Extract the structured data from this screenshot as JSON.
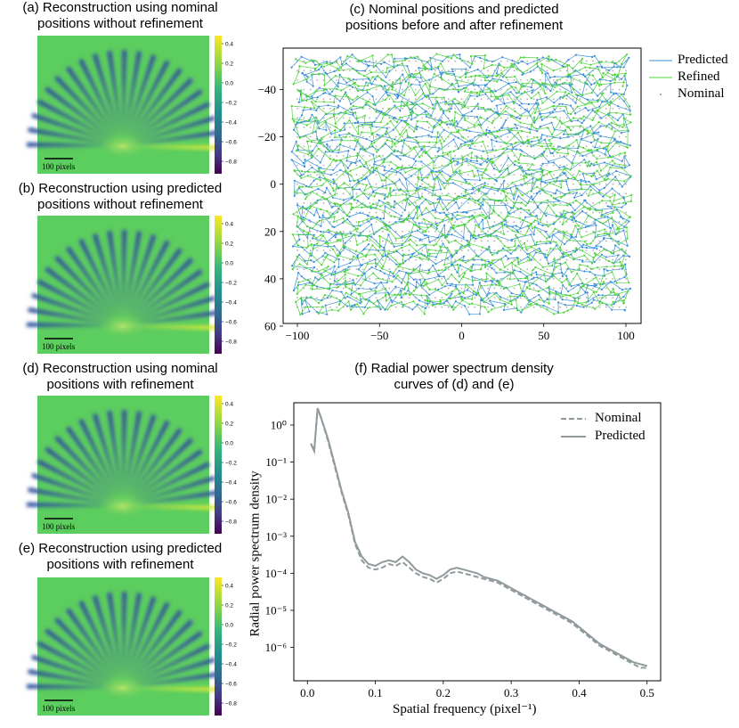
{
  "panels": {
    "a": {
      "title_l1": "(a) Reconstruction using nominal",
      "title_l2": "positions without refinement",
      "scalebar": "100 pixels"
    },
    "b": {
      "title_l1": "(b) Reconstruction using predicted",
      "title_l2": "positions without refinement",
      "scalebar": "100 pixels"
    },
    "d": {
      "title_l1": "(d) Reconstruction using nominal",
      "title_l2": "positions with refinement",
      "scalebar": "100 pixels"
    },
    "e": {
      "title_l1": "(e) Reconstruction using predicted",
      "title_l2": "positions with refinement",
      "scalebar": "100 pixels"
    },
    "c": {
      "title_l1": "(c) Nominal positions and predicted",
      "title_l2": "positions before and after refinement"
    },
    "f": {
      "title_l1": "(f) Radial power spectrum density",
      "title_l2": "curves of (d) and (e)"
    }
  },
  "colorbar_ticks": [
    "0.4",
    "0.2",
    "0.0",
    "−0.2",
    "−0.4",
    "−0.6",
    "−0.8"
  ],
  "colors": {
    "predicted": "#3a8fd9",
    "refined": "#4cd43a",
    "nominal": "#b0b0b0",
    "psd": "#909a9d"
  },
  "chart_data": [
    {
      "type": "scatter",
      "title": "(c) Nominal positions and predicted positions before and after refinement",
      "xlabel": "",
      "ylabel": "",
      "xlim": [
        -105,
        105
      ],
      "ylim": [
        60,
        -53
      ],
      "xticks": [
        "−100",
        "−50",
        "0",
        "50",
        "100"
      ],
      "xtick_values": [
        -100,
        -50,
        0,
        50,
        100
      ],
      "yticks": [
        "−40",
        "−20",
        "0",
        "20",
        "40",
        "60"
      ],
      "ytick_values": [
        -40,
        -20,
        0,
        20,
        40,
        60
      ],
      "nominal_grid": {
        "x_from": -100,
        "x_to": 100,
        "x_step": 4,
        "y_from": -52,
        "y_to": 52,
        "y_step": 4
      },
      "legend": [
        "Predicted",
        "Refined",
        "Nominal"
      ],
      "legend_position": "outside-top-right",
      "series": [
        {
          "name": "Predicted",
          "style": "line+points",
          "note": "perturbed serpentine scan path around nominal grid"
        },
        {
          "name": "Refined",
          "style": "line+points",
          "note": "refined scan path, close to predicted"
        },
        {
          "name": "Nominal",
          "style": "points"
        }
      ]
    },
    {
      "type": "line",
      "title": "(f) Radial power spectrum density curves of (d) and (e)",
      "xlabel": "Spatial frequency (pixel⁻¹)",
      "ylabel": "Radial power spectrum density",
      "yscale": "log",
      "xlim": [
        -0.02,
        0.52
      ],
      "ylim": [
        -6.9,
        0.6
      ],
      "xticks": [
        "0.0",
        "0.1",
        "0.2",
        "0.3",
        "0.4",
        "0.5"
      ],
      "xtick_values": [
        0,
        0.1,
        0.2,
        0.3,
        0.4,
        0.5
      ],
      "yticks": [
        "10⁰",
        "10⁻¹",
        "10⁻²",
        "10⁻³",
        "10⁻⁴",
        "10⁻⁵",
        "10⁻⁶"
      ],
      "ytick_values": [
        0,
        -1,
        -2,
        -3,
        -4,
        -5,
        -6
      ],
      "legend_position": "top-right",
      "series": [
        {
          "name": "Nominal",
          "dash": "dashed",
          "x": [
            0.005,
            0.01,
            0.015,
            0.02,
            0.03,
            0.04,
            0.05,
            0.06,
            0.07,
            0.08,
            0.09,
            0.1,
            0.11,
            0.12,
            0.13,
            0.14,
            0.15,
            0.16,
            0.17,
            0.18,
            0.19,
            0.2,
            0.21,
            0.22,
            0.23,
            0.24,
            0.25,
            0.26,
            0.27,
            0.28,
            0.29,
            0.3,
            0.31,
            0.32,
            0.33,
            0.34,
            0.35,
            0.36,
            0.37,
            0.38,
            0.39,
            0.4,
            0.41,
            0.42,
            0.43,
            0.44,
            0.45,
            0.46,
            0.47,
            0.48,
            0.49,
            0.5
          ],
          "log10_y": [
            -0.5,
            -0.7,
            0.45,
            0.2,
            -0.4,
            -1.1,
            -1.8,
            -2.4,
            -3.2,
            -3.65,
            -3.85,
            -3.9,
            -3.85,
            -3.75,
            -3.8,
            -3.7,
            -3.85,
            -4.0,
            -4.1,
            -4.15,
            -4.25,
            -4.15,
            -4.0,
            -3.95,
            -4.0,
            -4.05,
            -4.1,
            -4.15,
            -4.2,
            -4.25,
            -4.35,
            -4.45,
            -4.55,
            -4.65,
            -4.75,
            -4.85,
            -4.95,
            -5.05,
            -5.15,
            -5.25,
            -5.35,
            -5.5,
            -5.65,
            -5.8,
            -5.95,
            -6.05,
            -6.15,
            -6.25,
            -6.35,
            -6.45,
            -6.55,
            -6.55
          ]
        },
        {
          "name": "Predicted",
          "dash": "solid",
          "x": [
            0.005,
            0.01,
            0.015,
            0.02,
            0.03,
            0.04,
            0.05,
            0.06,
            0.07,
            0.08,
            0.09,
            0.1,
            0.11,
            0.12,
            0.13,
            0.14,
            0.15,
            0.16,
            0.17,
            0.18,
            0.19,
            0.2,
            0.21,
            0.22,
            0.23,
            0.24,
            0.25,
            0.26,
            0.27,
            0.28,
            0.29,
            0.3,
            0.31,
            0.32,
            0.33,
            0.34,
            0.35,
            0.36,
            0.37,
            0.38,
            0.39,
            0.4,
            0.41,
            0.42,
            0.43,
            0.44,
            0.45,
            0.46,
            0.47,
            0.48,
            0.49,
            0.5
          ],
          "log10_y": [
            -0.5,
            -0.7,
            0.45,
            0.2,
            -0.35,
            -1.05,
            -1.75,
            -2.35,
            -3.15,
            -3.55,
            -3.75,
            -3.8,
            -3.7,
            -3.65,
            -3.7,
            -3.55,
            -3.7,
            -3.9,
            -4.0,
            -4.05,
            -4.15,
            -4.05,
            -3.9,
            -3.85,
            -3.9,
            -3.95,
            -4.0,
            -4.1,
            -4.15,
            -4.2,
            -4.3,
            -4.4,
            -4.5,
            -4.6,
            -4.7,
            -4.8,
            -4.9,
            -5.0,
            -5.1,
            -5.2,
            -5.3,
            -5.45,
            -5.6,
            -5.75,
            -5.9,
            -6.0,
            -6.1,
            -6.2,
            -6.3,
            -6.4,
            -6.45,
            -6.5
          ]
        }
      ]
    }
  ]
}
